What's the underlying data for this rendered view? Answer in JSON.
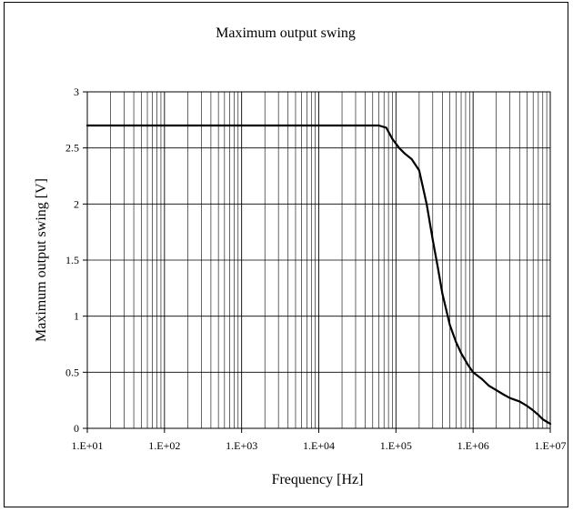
{
  "chart_data": {
    "type": "line",
    "title": "Maximum output swing",
    "xlabel": "Frequency [Hz]",
    "ylabel": "Maximum output swing [V]",
    "x_scale": "log",
    "xlim": [
      10,
      10000000
    ],
    "ylim": [
      0,
      3
    ],
    "grid": true,
    "legend": "none",
    "x_tick_values": [
      10,
      100,
      1000,
      10000,
      100000,
      1000000,
      10000000
    ],
    "x_tick_labels": [
      "1.E+01",
      "1.E+02",
      "1.E+03",
      "1.E+04",
      "1.E+05",
      "1.E+06",
      "1.E+07"
    ],
    "y_tick_values": [
      0,
      0.5,
      1,
      1.5,
      2,
      2.5,
      3
    ],
    "y_tick_labels": [
      "0",
      "0.5",
      "1",
      "1.5",
      "2",
      "2.5",
      "3"
    ],
    "line_color": "#000000",
    "series": [
      {
        "x": [
          10,
          100,
          1000,
          10000,
          60000,
          75000,
          90000,
          110000,
          130000,
          160000,
          200000,
          250000,
          300000,
          350000,
          400000,
          500000,
          600000,
          700000,
          850000,
          1000000,
          1300000,
          1600000,
          2000000,
          2500000,
          3000000,
          4000000,
          5000000,
          6000000,
          7000000,
          8000000,
          10000000
        ],
        "y": [
          2.7,
          2.7,
          2.7,
          2.7,
          2.7,
          2.68,
          2.58,
          2.5,
          2.45,
          2.4,
          2.3,
          2.0,
          1.68,
          1.43,
          1.2,
          0.92,
          0.77,
          0.67,
          0.57,
          0.5,
          0.44,
          0.38,
          0.34,
          0.3,
          0.27,
          0.24,
          0.2,
          0.16,
          0.12,
          0.08,
          0.04
        ]
      }
    ]
  }
}
